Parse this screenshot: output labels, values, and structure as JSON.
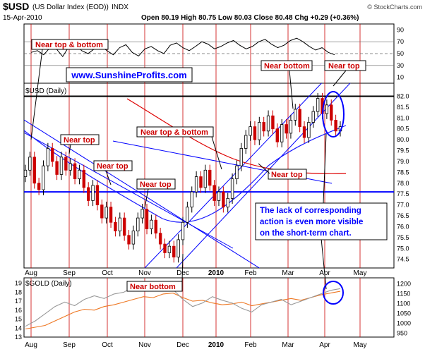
{
  "header": {
    "symbol": "$USD",
    "name": "(US Dollar Index (EOD))",
    "exchange": "INDX",
    "date": "15-Apr-2010",
    "ohlc": "Open 80.19  High 80.75  Low 80.03  Close 80.48  Chg +0.29 (+0.36%)",
    "credit": "© StockCharts.com",
    "website": "www.SunshineProfits.com"
  },
  "colors": {
    "price_up": "#000000",
    "price_down": "#cc0000",
    "ma_blue": "#1a1aff",
    "ma_red": "#dd0000",
    "channel": "#0000ff",
    "vgrid": "#cc0000",
    "gold_orange": "#ee7722",
    "gold_gray": "#999999",
    "annotation": "#cc0000",
    "callout_text": "#0000ff"
  },
  "chart_data": [
    {
      "type": "line",
      "panel": "indicator",
      "y_ticks": [
        90,
        70,
        50,
        30,
        10
      ],
      "ylim": [
        0,
        100
      ],
      "reference_lines": [
        70,
        50,
        30
      ],
      "values": [
        52,
        55,
        48,
        60,
        58,
        45,
        62,
        66,
        55,
        50,
        58,
        63,
        55,
        48,
        60,
        65,
        52,
        46,
        58,
        62,
        55,
        50,
        64,
        68,
        60,
        55,
        62,
        70,
        66,
        58,
        62,
        68,
        72,
        64,
        58,
        62,
        70,
        74,
        66,
        60,
        64,
        72,
        76,
        70,
        62,
        56,
        60,
        52,
        48
      ]
    },
    {
      "type": "candlestick",
      "panel": "price",
      "title": "$USD (Daily)",
      "x_ticks": [
        "Aug",
        "Sep",
        "Oct",
        "Nov",
        "Dec",
        "2010",
        "Feb",
        "Mar",
        "Apr",
        "May"
      ],
      "y_ticks": [
        82.0,
        81.5,
        81.0,
        80.5,
        80.0,
        79.5,
        79.0,
        78.5,
        78.0,
        77.5,
        77.0,
        76.5,
        76.0,
        75.5,
        75.0,
        74.5
      ],
      "ylim": [
        74.1,
        82.6
      ],
      "horizontal_lines": [
        82.0,
        77.6
      ],
      "close": [
        78.6,
        79.2,
        78.0,
        77.7,
        78.8,
        79.6,
        79.0,
        78.4,
        79.2,
        78.6,
        78.9,
        78.2,
        78.6,
        77.8,
        77.2,
        77.9,
        77.0,
        76.4,
        76.9,
        76.2,
        75.8,
        76.4,
        75.6,
        75.2,
        75.8,
        76.4,
        76.8,
        75.9,
        76.3,
        75.7,
        75.2,
        74.8,
        75.1,
        74.6,
        75.4,
        76.2,
        76.9,
        77.6,
        78.3,
        77.8,
        78.6,
        77.9,
        77.2,
        77.6,
        76.9,
        77.3,
        78.2,
        78.8,
        79.6,
        80.2,
        80.6,
        80.0,
        80.8,
        80.4,
        81.1,
        80.5,
        79.9,
        80.7,
        80.3,
        80.9,
        81.4,
        80.6,
        80.1,
        80.8,
        81.3,
        81.9,
        81.2,
        81.6,
        80.9,
        80.4,
        80.6
      ]
    },
    {
      "type": "line",
      "panel": "gold",
      "title": "$GOLD (Daily)",
      "left_y_ticks": [
        19,
        18,
        17,
        16,
        15,
        14,
        13
      ],
      "right_y_ticks": [
        1200,
        1150,
        1100,
        1050,
        1000,
        950
      ],
      "x_ticks": [
        "Aug",
        "Sep",
        "Oct",
        "Nov",
        "Dec",
        "2010",
        "Feb",
        "Mar",
        "Apr",
        "May"
      ],
      "series": [
        {
          "values": [
            13.9,
            14.1,
            14.3,
            14.8,
            15.3,
            15.8,
            16.1,
            16.0,
            16.4,
            16.6,
            16.9,
            17.2,
            17.5,
            17.4,
            17.8,
            17.9,
            17.4,
            17.0,
            17.1,
            16.8,
            16.6,
            16.7,
            16.9,
            16.5,
            16.7,
            16.9,
            17.1,
            17.3,
            17.1,
            17.4,
            17.7,
            17.9,
            18.1
          ]
        },
        {
          "values": [
            14.2,
            14.8,
            15.6,
            16.4,
            16.9,
            16.5,
            17.2,
            17.6,
            17.3,
            17.8,
            18.0,
            18.6,
            18.4,
            18.5,
            18.9,
            18.3,
            17.2,
            16.4,
            16.8,
            17.5,
            17.1,
            16.8,
            16.2,
            15.8,
            16.6,
            16.9,
            17.2,
            16.6,
            17.0,
            17.4,
            17.8,
            18.2,
            18.4
          ]
        }
      ]
    }
  ],
  "annotations": {
    "a1": "Near top & bottom",
    "a2": "Near top",
    "a3": "Near top",
    "a4": "Near top",
    "a5": "Near top & bottom",
    "a6": "Near bottom",
    "a7": "Near top",
    "a8": "Near top",
    "a9": "Near bottom",
    "callout": [
      "The lack of corresponding",
      "action is even more visible",
      "on the short-term chart."
    ]
  }
}
